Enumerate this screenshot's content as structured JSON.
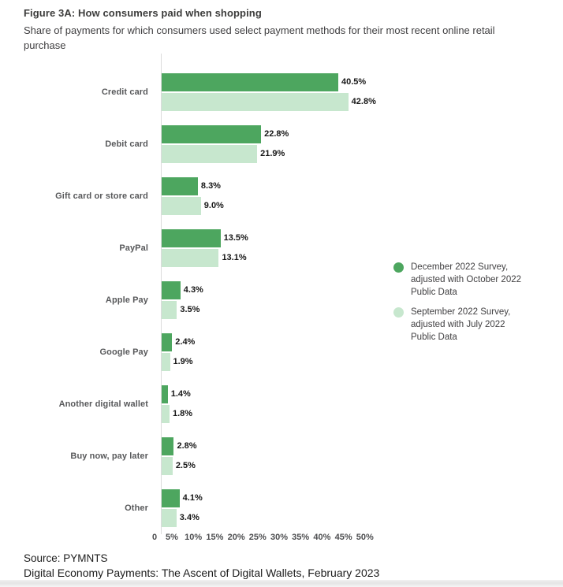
{
  "header": {
    "title": "Figure 3A: How consumers paid when shopping",
    "subtitle": "Share of payments for which consumers used select payment methods for their most recent online retail purchase"
  },
  "chart_data": {
    "type": "bar",
    "orientation": "horizontal",
    "title": "Figure 3A: How consumers paid when shopping",
    "subtitle": "Share of payments for which consumers used select payment methods for their most recent online retail purchase",
    "categories": [
      "Credit card",
      "Debit card",
      "Gift card or store card",
      "PayPal",
      "Apple Pay",
      "Google Pay",
      "Another digital wallet",
      "Buy now, pay later",
      "Other"
    ],
    "series": [
      {
        "name": "December 2022 Survey, adjusted with October 2022 Public Data",
        "color": "#4da65f",
        "values": [
          40.5,
          22.8,
          8.3,
          13.5,
          4.3,
          2.4,
          1.4,
          2.8,
          4.1
        ]
      },
      {
        "name": "September 2022 Survey, adjusted with July 2022 Public Data",
        "color": "#c7e7ce",
        "values": [
          42.8,
          21.9,
          9.0,
          13.1,
          3.5,
          1.9,
          1.8,
          2.5,
          3.4
        ]
      }
    ],
    "value_label_suffix": "%",
    "xlabel": "",
    "ylabel": "",
    "xlim": [
      0,
      50
    ],
    "x_ticks": [
      "0",
      "5%",
      "10%",
      "15%",
      "20%",
      "25%",
      "30%",
      "35%",
      "40%",
      "45%",
      "50%"
    ],
    "grid": false,
    "legend_position": "right"
  },
  "legend": {
    "items": [
      {
        "label": "December 2022 Survey,\nadjusted with October 2022\nPublic Data",
        "color": "#4da65f"
      },
      {
        "label": "September 2022 Survey,\nadjusted with July 2022\nPublic Data",
        "color": "#c7e7ce"
      }
    ]
  },
  "footer": {
    "source": "Source: PYMNTS",
    "publication": "Digital Economy Payments: The Ascent of Digital Wallets, February 2023"
  },
  "colors": {
    "series_dark_green": "#4da65f",
    "series_light_green": "#c7e7ce",
    "axis_line": "#dcdcdc",
    "category_label": "#58595b",
    "value_label": "#161616",
    "text": "#414042"
  }
}
